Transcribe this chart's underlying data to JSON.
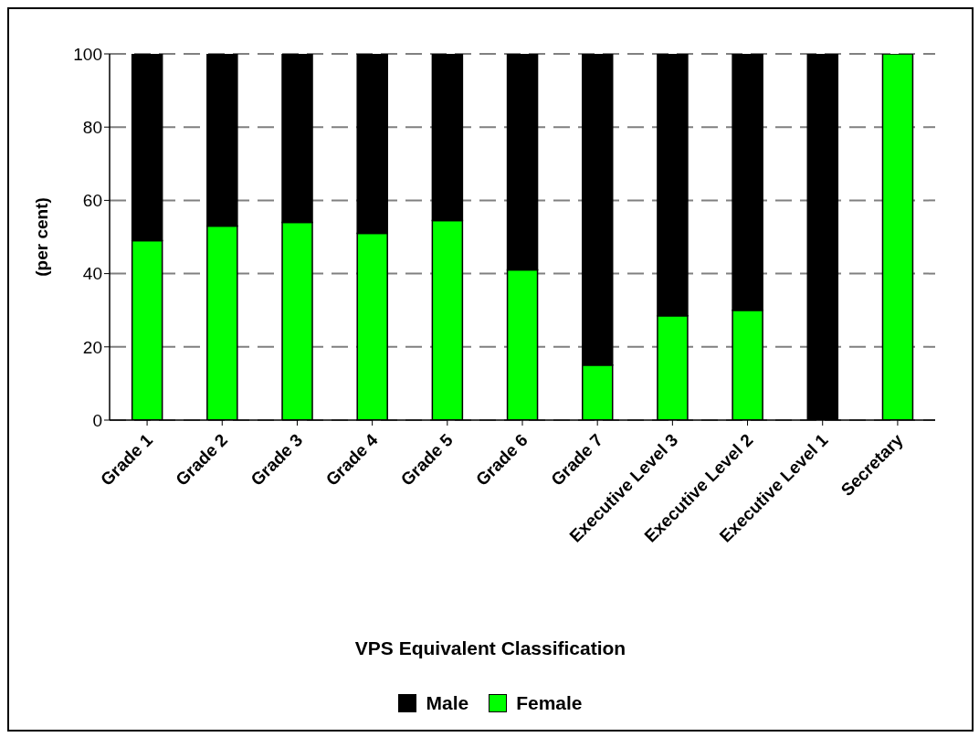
{
  "chart_data": {
    "type": "bar",
    "stacked": true,
    "xlabel": "VPS Equivalent Classification",
    "ylabel": "(per cent)",
    "categories": [
      "Grade 1",
      "Grade 2",
      "Grade 3",
      "Grade 4",
      "Grade 5",
      "Grade 6",
      "Grade 7",
      "Executive Level 3",
      "Executive Level 2",
      "Executive Level 1",
      "Secretary"
    ],
    "series": [
      {
        "name": "Female",
        "color": "#00ff00",
        "values": [
          49,
          53,
          54,
          51,
          54.5,
          41,
          15,
          28.5,
          30,
          0,
          100
        ]
      },
      {
        "name": "Male",
        "color": "#000000",
        "values": [
          51,
          47,
          46,
          49,
          45.5,
          59,
          85,
          71.5,
          70,
          100,
          0
        ]
      }
    ],
    "ylim": [
      0,
      100
    ],
    "yticks": [
      0,
      20,
      40,
      60,
      80,
      100
    ],
    "grid": "y",
    "legend": "bottom"
  }
}
